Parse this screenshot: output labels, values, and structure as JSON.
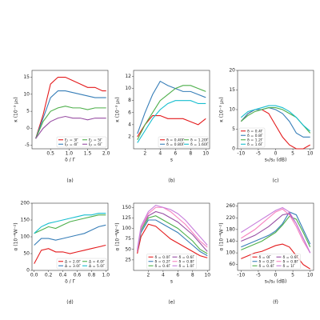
{
  "chart_data": [
    {
      "type": "line",
      "label": "(a)",
      "xlabel": "δ / Γ",
      "ylabel": "κ (10⁻³ μ₅)",
      "x": [
        0.1,
        0.3,
        0.5,
        0.7,
        0.9,
        1.1,
        1.3,
        1.5,
        1.7,
        1.9,
        2.0
      ],
      "xlim": [
        0,
        2.05
      ],
      "xticks": [
        0.5,
        {
          "value": 1,
          "label": "1.0"
        },
        1.5,
        {
          "value": 2,
          "label": "2.0"
        }
      ],
      "ylim": [
        -6,
        17
      ],
      "yticks": [
        -5,
        0,
        5,
        10,
        15
      ],
      "legend": "lower right",
      "legend_columns": 2,
      "series": [
        {
          "name": "ξ₁ = 3Γ",
          "color": "#e41a1c",
          "values": [
            -3,
            4,
            13,
            15,
            15,
            14,
            13,
            12,
            12,
            11,
            11
          ]
        },
        {
          "name": "ξ₁ = 4Γ",
          "color": "#377eb8",
          "values": [
            -3,
            3,
            9,
            11,
            11,
            10.5,
            10,
            9.5,
            9,
            9,
            9
          ]
        },
        {
          "name": "ξ₁ = 5Γ",
          "color": "#4daf4a",
          "values": [
            -3,
            2,
            5,
            6,
            6.5,
            6,
            6,
            5.5,
            6,
            6,
            6
          ]
        },
        {
          "name": "ξ₁ = 6Γ",
          "color": "#984ea3",
          "values": [
            -3,
            0,
            2,
            3,
            3.5,
            3,
            3,
            2.5,
            3,
            3,
            3
          ]
        }
      ]
    },
    {
      "type": "line",
      "label": "(b)",
      "xlabel": "s",
      "ylabel": "κ (10⁻³ μ₅)",
      "x": [
        1,
        2,
        3,
        4,
        5,
        6,
        7,
        8,
        9,
        10
      ],
      "xlim": [
        0.5,
        10.5
      ],
      "xticks": [
        2,
        4,
        6,
        8,
        10
      ],
      "ylim": [
        0,
        13
      ],
      "yticks": [
        2,
        4,
        6,
        8,
        10,
        12
      ],
      "legend": "lower right",
      "legend_columns": 2,
      "series": [
        {
          "name": "δ = 0.40Γ",
          "color": "#e41a1c",
          "values": [
            2,
            4,
            5.5,
            5.5,
            5,
            5,
            5,
            4.5,
            4,
            5
          ]
        },
        {
          "name": "δ = 0.80Γ",
          "color": "#377eb8",
          "values": [
            2.5,
            6,
            9,
            11.2,
            10.5,
            10,
            9.5,
            9.5,
            9,
            8.5
          ]
        },
        {
          "name": "δ = 1.20Γ",
          "color": "#4daf4a",
          "values": [
            1.5,
            4,
            6,
            8,
            9,
            10,
            10.5,
            10.5,
            10,
            9.5
          ]
        },
        {
          "name": "δ = 1.60Γ",
          "color": "#17becf",
          "values": [
            1,
            3,
            5,
            6.5,
            7.5,
            8,
            8,
            8,
            7.5,
            7.5
          ]
        }
      ]
    },
    {
      "type": "line",
      "label": "(c)",
      "xlabel": "s₀/s₂ (dB)",
      "ylabel": "κ (10⁻³ μ₅)",
      "x": [
        -10,
        -8,
        -6,
        -4,
        -2,
        0,
        2,
        4,
        6,
        8,
        10
      ],
      "xlim": [
        -11,
        11
      ],
      "xticks": [
        -10,
        -5,
        0,
        5,
        10
      ],
      "ylim": [
        0,
        20
      ],
      "yticks": [
        0,
        5,
        10,
        15,
        20
      ],
      "legend": "lower left",
      "legend_columns": 1,
      "series": [
        {
          "name": "δ = 0.4Γ",
          "color": "#e41a1c",
          "values": [
            7,
            9,
            10,
            10,
            9,
            6,
            3,
            1,
            0,
            0,
            1
          ]
        },
        {
          "name": "δ = 0.8Γ",
          "color": "#377eb8",
          "values": [
            7,
            9,
            10,
            10,
            10.5,
            10,
            9,
            7,
            4,
            3,
            3
          ]
        },
        {
          "name": "δ = 1.2Γ",
          "color": "#4daf4a",
          "values": [
            7,
            8.5,
            9.5,
            10,
            10.5,
            10.5,
            10,
            9,
            8,
            6,
            4
          ]
        },
        {
          "name": "δ = 1.6Γ",
          "color": "#17becf",
          "values": [
            8,
            9.5,
            10,
            10.5,
            11,
            11,
            10.5,
            9.5,
            8,
            6,
            4.5
          ]
        }
      ]
    },
    {
      "type": "line",
      "label": "(d)",
      "xlabel": "δ / Γ",
      "ylabel": "α (10⁻⁴W⁻²)",
      "x": [
        0,
        0.1,
        0.2,
        0.3,
        0.4,
        0.5,
        0.6,
        0.7,
        0.8,
        0.9,
        1.0
      ],
      "xlim": [
        -0.03,
        1.03
      ],
      "xticks": [
        {
          "value": 0,
          "label": "0.0"
        },
        0.2,
        0.4,
        0.6,
        0.8,
        {
          "value": 1,
          "label": "1.0"
        }
      ],
      "ylim": [
        0,
        200
      ],
      "yticks": [
        0,
        50,
        100,
        150,
        200
      ],
      "legend": "lower right",
      "legend_columns": 2,
      "series": [
        {
          "name": "Δ = 2.0Γ",
          "color": "#e41a1c",
          "values": [
            20,
            60,
            65,
            55,
            55,
            50,
            55,
            60,
            65,
            70,
            75
          ]
        },
        {
          "name": "Δ = 3.0Γ",
          "color": "#377eb8",
          "values": [
            75,
            95,
            95,
            90,
            95,
            100,
            105,
            110,
            120,
            130,
            135
          ]
        },
        {
          "name": "Δ = 4.0Γ",
          "color": "#4daf4a",
          "values": [
            110,
            120,
            130,
            125,
            135,
            145,
            150,
            155,
            160,
            165,
            165
          ]
        },
        {
          "name": "Δ = 5.0Γ",
          "color": "#17becf",
          "values": [
            110,
            130,
            140,
            145,
            150,
            155,
            160,
            165,
            165,
            170,
            170
          ]
        }
      ]
    },
    {
      "type": "line",
      "label": "(e)",
      "xlabel": "s",
      "ylabel": "α (10⁻⁴W⁻²)",
      "x": [
        0.5,
        1,
        2,
        3,
        4,
        5,
        6,
        7,
        8,
        9,
        10
      ],
      "xlim": [
        0,
        10.3
      ],
      "xticks": [
        2,
        4,
        6,
        8,
        10
      ],
      "ylim": [
        0,
        160
      ],
      "yticks": [
        25,
        50,
        75,
        100,
        125,
        150
      ],
      "legend": "lower center",
      "legend_columns": 2,
      "series": [
        {
          "name": "δ = 0.0Γ",
          "color": "#e41a1c",
          "values": [
            40,
            80,
            110,
            105,
            90,
            75,
            65,
            55,
            45,
            35,
            30
          ]
        },
        {
          "name": "δ = 0.2Γ",
          "color": "#377eb8",
          "values": [
            45,
            90,
            120,
            120,
            110,
            100,
            90,
            75,
            60,
            45,
            35
          ]
        },
        {
          "name": "δ = 0.4Γ",
          "color": "#4daf4a",
          "values": [
            45,
            95,
            125,
            130,
            120,
            110,
            100,
            85,
            70,
            50,
            40
          ]
        },
        {
          "name": "δ = 0.6Γ",
          "color": "#984ea3",
          "values": [
            45,
            100,
            130,
            140,
            135,
            125,
            115,
            100,
            85,
            65,
            45
          ]
        },
        {
          "name": "δ = 0.8Γ",
          "color": "#f781bf",
          "values": [
            45,
            100,
            135,
            150,
            150,
            140,
            125,
            110,
            90,
            70,
            55
          ]
        },
        {
          "name": "δ = 1.0Γ",
          "color": "#c77cdb",
          "values": [
            50,
            105,
            140,
            155,
            150,
            145,
            135,
            120,
            100,
            80,
            60
          ]
        }
      ]
    },
    {
      "type": "line",
      "label": "(f)",
      "xlabel": "s₀/s₂ (dB)",
      "ylabel": "α (10⁻⁴W⁻²)",
      "x": [
        -10,
        -8,
        -6,
        -4,
        -2,
        0,
        2,
        4,
        6,
        8,
        10
      ],
      "xlim": [
        -11,
        11
      ],
      "xticks": [
        -10,
        -5,
        0,
        5,
        10
      ],
      "ylim": [
        40,
        270
      ],
      "yticks": [
        60,
        100,
        140,
        180,
        220,
        260
      ],
      "legend": "lower center",
      "legend_columns": 2,
      "series": [
        {
          "name": "δ = 0Γ",
          "color": "#e41a1c",
          "values": [
            80,
            90,
            100,
            105,
            115,
            125,
            130,
            120,
            90,
            60,
            45
          ]
        },
        {
          "name": "δ = 0.2Γ",
          "color": "#377eb8",
          "values": [
            120,
            130,
            140,
            150,
            160,
            175,
            200,
            240,
            230,
            180,
            130
          ]
        },
        {
          "name": "δ = 0.4Γ",
          "color": "#4daf4a",
          "values": [
            110,
            120,
            130,
            140,
            155,
            170,
            195,
            225,
            215,
            170,
            120
          ]
        },
        {
          "name": "δ = 0.6Γ",
          "color": "#984ea3",
          "values": [
            140,
            150,
            160,
            175,
            190,
            210,
            230,
            235,
            200,
            150,
            100
          ]
        },
        {
          "name": "δ = 0.8Γ",
          "color": "#f781bf",
          "values": [
            150,
            165,
            180,
            200,
            220,
            240,
            250,
            230,
            190,
            140,
            100
          ]
        },
        {
          "name": "δ = 1Γ",
          "color": "#c77cdb",
          "values": [
            170,
            185,
            200,
            215,
            230,
            245,
            255,
            240,
            200,
            150,
            100
          ]
        }
      ]
    }
  ]
}
